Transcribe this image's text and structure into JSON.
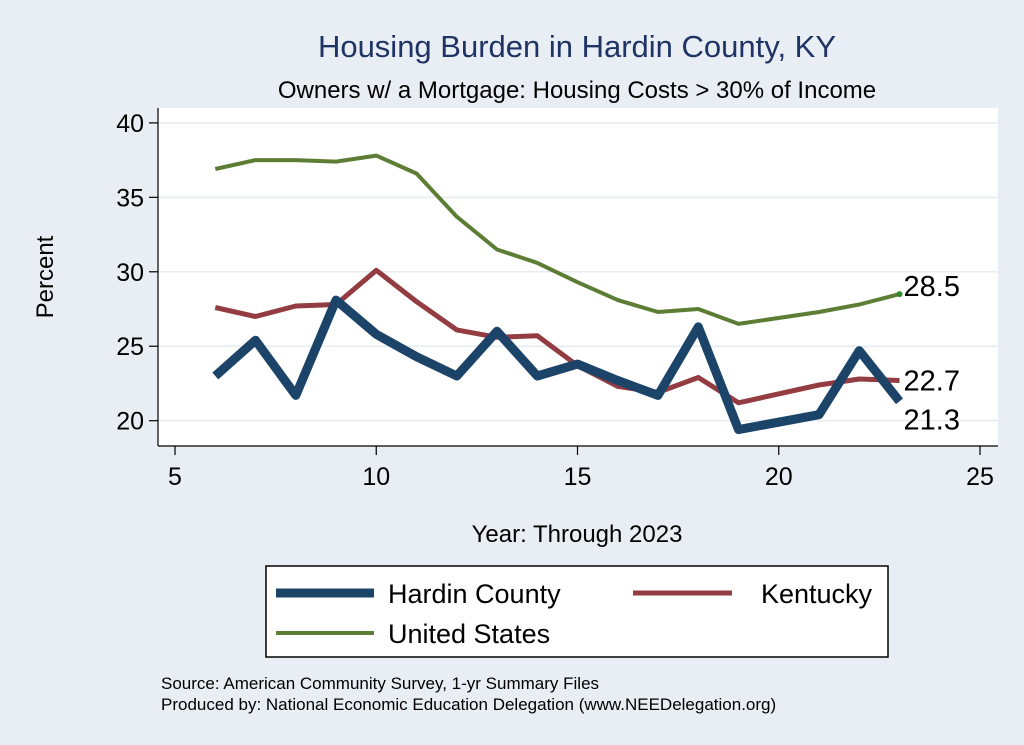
{
  "chart_data": {
    "type": "line",
    "title": "Housing Burden in Hardin County, KY",
    "subtitle": "Owners w/ a Mortgage: Housing Costs > 30% of Income",
    "xlabel": "Year: Through 2023",
    "ylabel": "Percent",
    "xlim": [
      5,
      25
    ],
    "ylim": [
      18.3,
      41
    ],
    "xticks": [
      5,
      10,
      15,
      20,
      25
    ],
    "yticks": [
      20,
      25,
      30,
      35,
      40
    ],
    "grid": true,
    "legend_position": "bottom",
    "series": [
      {
        "name": "Hardin County",
        "color": "#1b4468",
        "x": [
          6,
          7,
          8,
          9,
          10,
          11,
          12,
          13,
          14,
          15,
          16,
          17,
          18,
          19,
          21,
          22,
          23
        ],
        "y": [
          23.0,
          25.4,
          21.7,
          28.1,
          25.8,
          24.3,
          23.0,
          26.0,
          23.0,
          23.8,
          22.7,
          21.7,
          26.3,
          19.4,
          20.4,
          24.7,
          21.3
        ],
        "end_label": "21.3"
      },
      {
        "name": "Kentucky",
        "color": "#933c41",
        "x": [
          6,
          7,
          8,
          9,
          10,
          11,
          12,
          13,
          14,
          15,
          16,
          17,
          18,
          19,
          21,
          22,
          23
        ],
        "y": [
          27.6,
          27.0,
          27.7,
          27.8,
          30.1,
          28.0,
          26.1,
          25.6,
          25.7,
          23.7,
          22.3,
          21.9,
          22.9,
          21.2,
          22.4,
          22.8,
          22.7
        ],
        "end_label": "22.7"
      },
      {
        "name": "United States",
        "color": "#5d7d34",
        "x": [
          6,
          7,
          8,
          9,
          10,
          11,
          12,
          13,
          14,
          15,
          16,
          17,
          18,
          19,
          21,
          22,
          23
        ],
        "y": [
          36.9,
          37.5,
          37.5,
          37.4,
          37.8,
          36.6,
          33.7,
          31.5,
          30.6,
          29.3,
          28.1,
          27.3,
          27.5,
          26.5,
          27.3,
          27.8,
          28.5
        ],
        "end_label": "28.5"
      }
    ]
  },
  "footnotes": {
    "source": "Source: American Community Survey, 1-yr Summary Files",
    "produced": "Produced by: National Economic Education Delegation (www.NEEDelegation.org)"
  }
}
